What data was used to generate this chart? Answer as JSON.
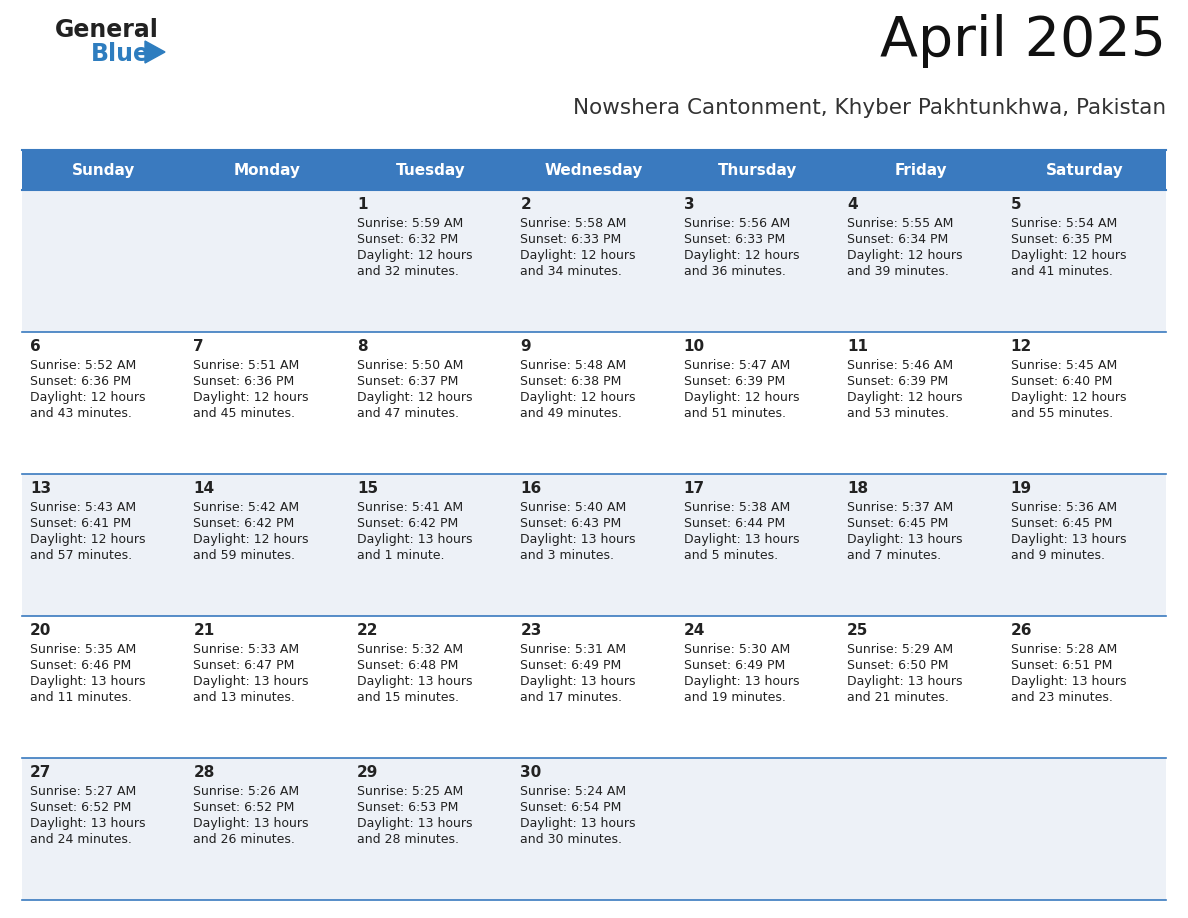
{
  "title": "April 2025",
  "subtitle": "Nowshera Cantonment, Khyber Pakhtunkhwa, Pakistan",
  "header_bg_color": "#3a7abf",
  "header_text_color": "#ffffff",
  "row_bg_odd": "#edf1f7",
  "row_bg_even": "#ffffff",
  "border_color": "#3a7abf",
  "text_color": "#222222",
  "day_names": [
    "Sunday",
    "Monday",
    "Tuesday",
    "Wednesday",
    "Thursday",
    "Friday",
    "Saturday"
  ],
  "logo_color1": "#222222",
  "logo_color2": "#2e7dbf",
  "weeks": [
    [
      {
        "day": "",
        "sunrise": "",
        "sunset": "",
        "daylight": ""
      },
      {
        "day": "",
        "sunrise": "",
        "sunset": "",
        "daylight": ""
      },
      {
        "day": "1",
        "sunrise": "5:59 AM",
        "sunset": "6:32 PM",
        "daylight": "12 hours\nand 32 minutes."
      },
      {
        "day": "2",
        "sunrise": "5:58 AM",
        "sunset": "6:33 PM",
        "daylight": "12 hours\nand 34 minutes."
      },
      {
        "day": "3",
        "sunrise": "5:56 AM",
        "sunset": "6:33 PM",
        "daylight": "12 hours\nand 36 minutes."
      },
      {
        "day": "4",
        "sunrise": "5:55 AM",
        "sunset": "6:34 PM",
        "daylight": "12 hours\nand 39 minutes."
      },
      {
        "day": "5",
        "sunrise": "5:54 AM",
        "sunset": "6:35 PM",
        "daylight": "12 hours\nand 41 minutes."
      }
    ],
    [
      {
        "day": "6",
        "sunrise": "5:52 AM",
        "sunset": "6:36 PM",
        "daylight": "12 hours\nand 43 minutes."
      },
      {
        "day": "7",
        "sunrise": "5:51 AM",
        "sunset": "6:36 PM",
        "daylight": "12 hours\nand 45 minutes."
      },
      {
        "day": "8",
        "sunrise": "5:50 AM",
        "sunset": "6:37 PM",
        "daylight": "12 hours\nand 47 minutes."
      },
      {
        "day": "9",
        "sunrise": "5:48 AM",
        "sunset": "6:38 PM",
        "daylight": "12 hours\nand 49 minutes."
      },
      {
        "day": "10",
        "sunrise": "5:47 AM",
        "sunset": "6:39 PM",
        "daylight": "12 hours\nand 51 minutes."
      },
      {
        "day": "11",
        "sunrise": "5:46 AM",
        "sunset": "6:39 PM",
        "daylight": "12 hours\nand 53 minutes."
      },
      {
        "day": "12",
        "sunrise": "5:45 AM",
        "sunset": "6:40 PM",
        "daylight": "12 hours\nand 55 minutes."
      }
    ],
    [
      {
        "day": "13",
        "sunrise": "5:43 AM",
        "sunset": "6:41 PM",
        "daylight": "12 hours\nand 57 minutes."
      },
      {
        "day": "14",
        "sunrise": "5:42 AM",
        "sunset": "6:42 PM",
        "daylight": "12 hours\nand 59 minutes."
      },
      {
        "day": "15",
        "sunrise": "5:41 AM",
        "sunset": "6:42 PM",
        "daylight": "13 hours\nand 1 minute."
      },
      {
        "day": "16",
        "sunrise": "5:40 AM",
        "sunset": "6:43 PM",
        "daylight": "13 hours\nand 3 minutes."
      },
      {
        "day": "17",
        "sunrise": "5:38 AM",
        "sunset": "6:44 PM",
        "daylight": "13 hours\nand 5 minutes."
      },
      {
        "day": "18",
        "sunrise": "5:37 AM",
        "sunset": "6:45 PM",
        "daylight": "13 hours\nand 7 minutes."
      },
      {
        "day": "19",
        "sunrise": "5:36 AM",
        "sunset": "6:45 PM",
        "daylight": "13 hours\nand 9 minutes."
      }
    ],
    [
      {
        "day": "20",
        "sunrise": "5:35 AM",
        "sunset": "6:46 PM",
        "daylight": "13 hours\nand 11 minutes."
      },
      {
        "day": "21",
        "sunrise": "5:33 AM",
        "sunset": "6:47 PM",
        "daylight": "13 hours\nand 13 minutes."
      },
      {
        "day": "22",
        "sunrise": "5:32 AM",
        "sunset": "6:48 PM",
        "daylight": "13 hours\nand 15 minutes."
      },
      {
        "day": "23",
        "sunrise": "5:31 AM",
        "sunset": "6:49 PM",
        "daylight": "13 hours\nand 17 minutes."
      },
      {
        "day": "24",
        "sunrise": "5:30 AM",
        "sunset": "6:49 PM",
        "daylight": "13 hours\nand 19 minutes."
      },
      {
        "day": "25",
        "sunrise": "5:29 AM",
        "sunset": "6:50 PM",
        "daylight": "13 hours\nand 21 minutes."
      },
      {
        "day": "26",
        "sunrise": "5:28 AM",
        "sunset": "6:51 PM",
        "daylight": "13 hours\nand 23 minutes."
      }
    ],
    [
      {
        "day": "27",
        "sunrise": "5:27 AM",
        "sunset": "6:52 PM",
        "daylight": "13 hours\nand 24 minutes."
      },
      {
        "day": "28",
        "sunrise": "5:26 AM",
        "sunset": "6:52 PM",
        "daylight": "13 hours\nand 26 minutes."
      },
      {
        "day": "29",
        "sunrise": "5:25 AM",
        "sunset": "6:53 PM",
        "daylight": "13 hours\nand 28 minutes."
      },
      {
        "day": "30",
        "sunrise": "5:24 AM",
        "sunset": "6:54 PM",
        "daylight": "13 hours\nand 30 minutes."
      },
      {
        "day": "",
        "sunrise": "",
        "sunset": "",
        "daylight": ""
      },
      {
        "day": "",
        "sunrise": "",
        "sunset": "",
        "daylight": ""
      },
      {
        "day": "",
        "sunrise": "",
        "sunset": "",
        "daylight": ""
      }
    ]
  ]
}
